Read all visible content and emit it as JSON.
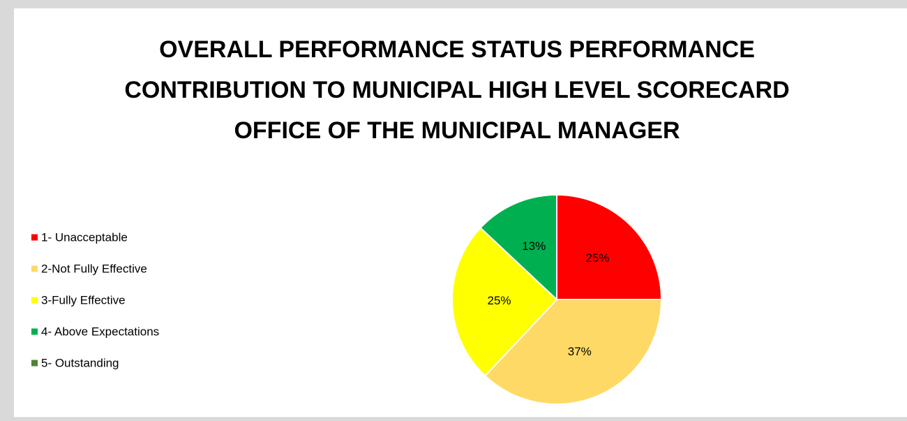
{
  "chart_data": {
    "type": "pie",
    "title": [
      "OVERALL PERFORMANCE STATUS PERFORMANCE",
      "CONTRIBUTION TO MUNICIPAL HIGH LEVEL SCORECARD",
      "OFFICE OF THE MUNICIPAL MANAGER"
    ],
    "categories": [
      "1- Unacceptable",
      "2-Not Fully Effective",
      "3-Fully Effective",
      "4- Above Expectations",
      "5- Outstanding"
    ],
    "values": [
      25,
      37,
      25,
      13,
      0
    ],
    "value_labels": [
      "25%",
      "37%",
      "25%",
      "13%",
      null
    ],
    "colors": [
      "#ff0000",
      "#ffd966",
      "#ffff00",
      "#00b050",
      "#548235"
    ],
    "legend": "left"
  }
}
